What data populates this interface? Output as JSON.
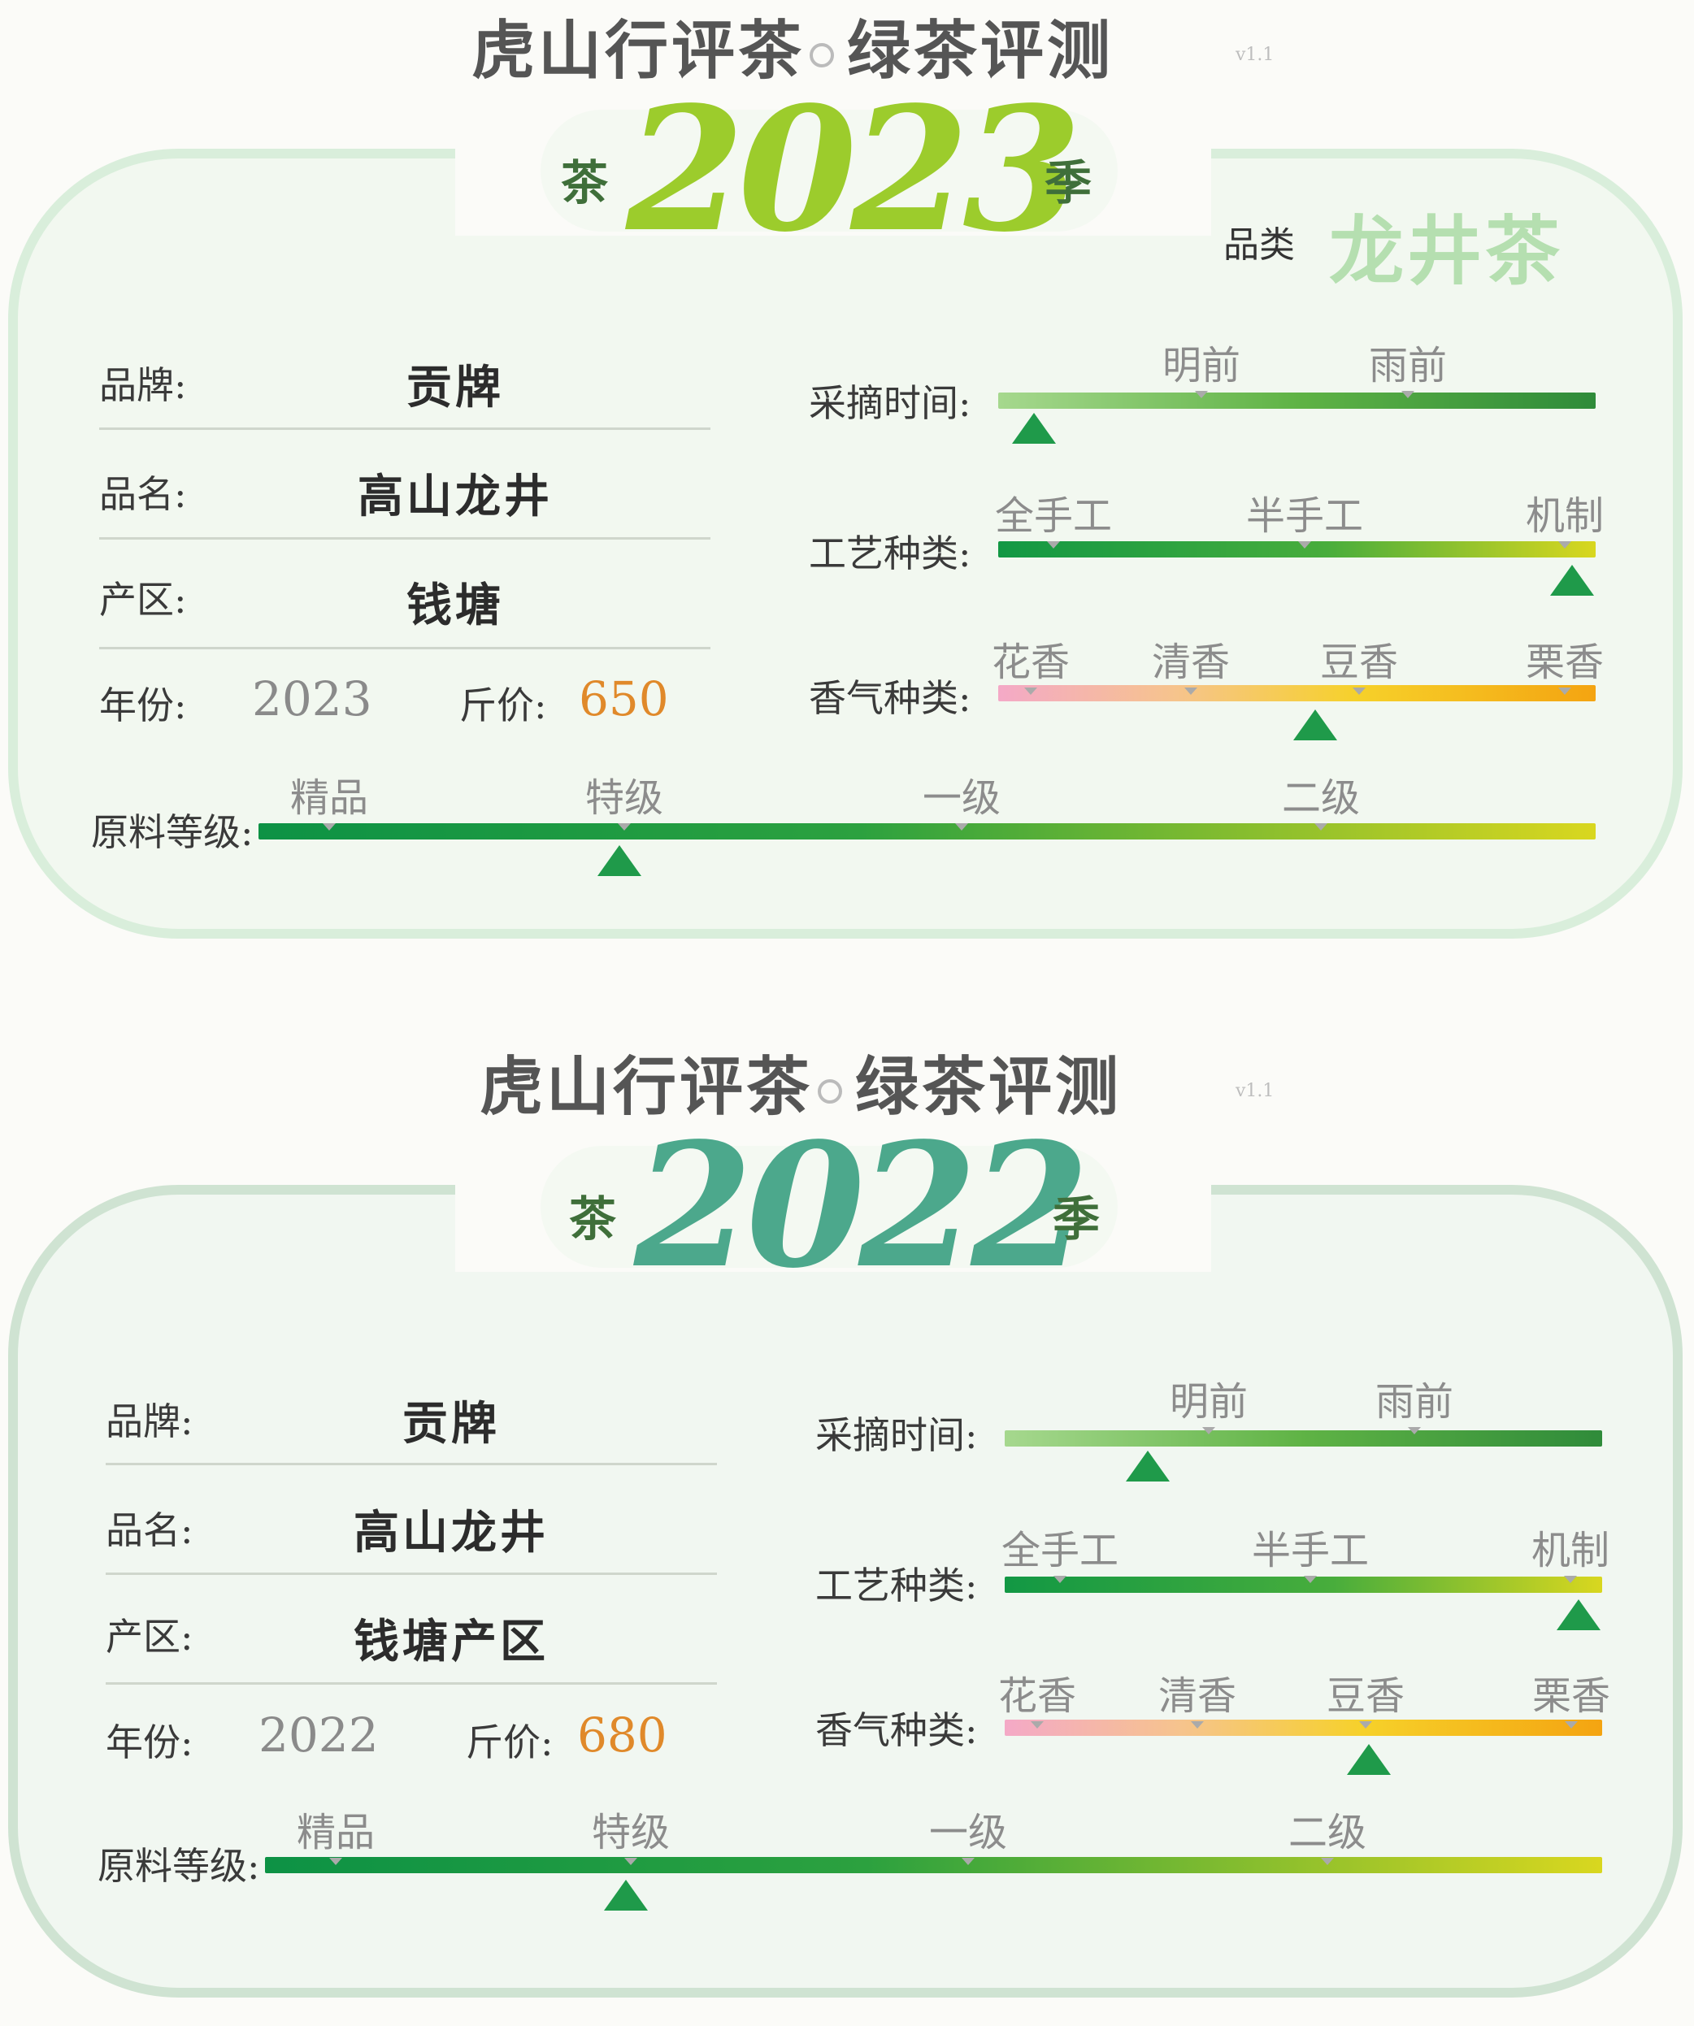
{
  "colors": {
    "year_2023": "#9ccc2c",
    "year_2022": "#4ca88c",
    "category": "#b5dfb0",
    "price": "#e0892a",
    "marker": "#1f9a4a"
  },
  "panels": [
    {
      "header": "虎山行评茶",
      "header_right": "绿茶评测",
      "version": "v1.1",
      "season_left": "茶",
      "season_year": "2023",
      "season_right": "季",
      "category_label": "品类",
      "category_value": "龙井茶",
      "brand_label": "品牌:",
      "brand_value": "贡牌",
      "name_label": "品名:",
      "name_value": "高山龙井",
      "origin_label": "产区:",
      "origin_value": "钱塘",
      "year_label": "年份:",
      "year_value": "2023",
      "price_label": "斤价:",
      "price_value": "650",
      "pick_label": "采摘时间:",
      "pick_ticks": [
        "明前",
        "雨前"
      ],
      "pick_level": 0.06,
      "craft_label": "工艺种类:",
      "craft_ticks": [
        "全手工",
        "半手工",
        "机制"
      ],
      "craft_level": 0.96,
      "aroma_label": "香气种类:",
      "aroma_ticks": [
        "花香",
        "清香",
        "豆香",
        "栗香"
      ],
      "aroma_level": 0.53,
      "grade_label": "原料等级:",
      "grade_ticks": [
        "精品",
        "特级",
        "一级",
        "二级"
      ],
      "grade_level": 0.27
    },
    {
      "header": "虎山行评茶",
      "header_right": "绿茶评测",
      "version": "v1.1",
      "season_left": "茶",
      "season_year": "2022",
      "season_right": "季",
      "brand_label": "品牌:",
      "brand_value": "贡牌",
      "name_label": "品名:",
      "name_value": "高山龙井",
      "origin_label": "产区:",
      "origin_value": "钱塘产区",
      "year_label": "年份:",
      "year_value": "2022",
      "price_label": "斤价:",
      "price_value": "680",
      "pick_label": "采摘时间:",
      "pick_ticks": [
        "明前",
        "雨前"
      ],
      "pick_level": 0.24,
      "craft_label": "工艺种类:",
      "craft_ticks": [
        "全手工",
        "半手工",
        "机制"
      ],
      "craft_level": 0.96,
      "aroma_label": "香气种类:",
      "aroma_ticks": [
        "花香",
        "清香",
        "豆香",
        "栗香"
      ],
      "aroma_level": 0.61,
      "grade_label": "原料等级:",
      "grade_ticks": [
        "精品",
        "特级",
        "一级",
        "二级"
      ],
      "grade_level": 0.27
    }
  ]
}
